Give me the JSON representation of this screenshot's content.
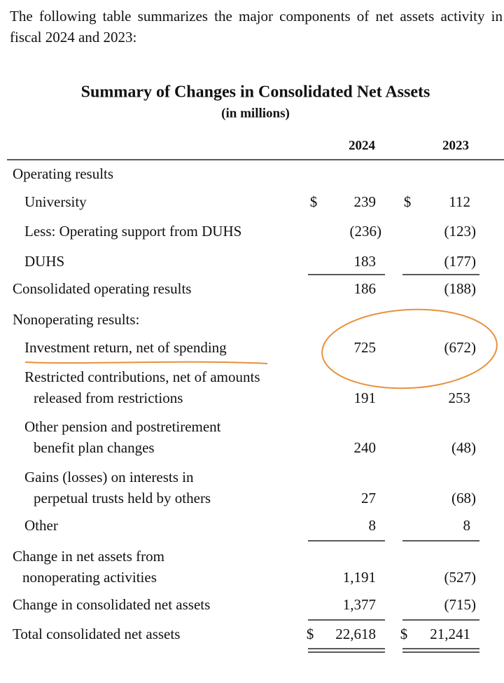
{
  "intro": "The following table summarizes the major components of net assets activity in fiscal 2024 and 2023:",
  "table": {
    "title": "Summary of Changes in Consolidated Net Assets",
    "subtitle": "(in millions)",
    "columns": [
      "2024",
      "2023"
    ],
    "rows": [
      {
        "label": [
          "Operating results"
        ]
      },
      {
        "label": [
          "University"
        ],
        "currency": [
          "$",
          "$"
        ],
        "values": [
          "239",
          "112"
        ]
      },
      {
        "label": [
          "Less: Operating support from DUHS"
        ],
        "values": [
          "(236)",
          "(123)"
        ]
      },
      {
        "label": [
          "DUHS"
        ],
        "values": [
          "183",
          "(177)"
        ]
      },
      {
        "label": [
          "Consolidated operating results"
        ],
        "values": [
          "186",
          "(188)"
        ]
      },
      {
        "label": [
          "Nonoperating results:"
        ]
      },
      {
        "label": [
          "Investment return, net of spending"
        ],
        "values": [
          "725",
          "(672)"
        ]
      },
      {
        "label": [
          "Restricted contributions, net of amounts",
          "released from restrictions"
        ],
        "values": [
          "191",
          "253"
        ]
      },
      {
        "label": [
          "Other pension and postretirement",
          "benefit plan changes"
        ],
        "values": [
          "240",
          "(48)"
        ]
      },
      {
        "label": [
          "Gains (losses) on interests in",
          "perpetual trusts held by others"
        ],
        "values": [
          "27",
          "(68)"
        ]
      },
      {
        "label": [
          "Other"
        ],
        "values": [
          "8",
          "8"
        ]
      },
      {
        "label": [
          "Change in net assets from",
          "nonoperating activities"
        ],
        "values": [
          "1,191",
          "(527)"
        ]
      },
      {
        "label": [
          "Change in consolidated net assets"
        ],
        "values": [
          "1,377",
          "(715)"
        ]
      },
      {
        "label": [
          "Total consolidated net assets"
        ],
        "currency": [
          "$",
          "$"
        ],
        "values": [
          "22,618",
          "21,241"
        ]
      }
    ]
  }
}
